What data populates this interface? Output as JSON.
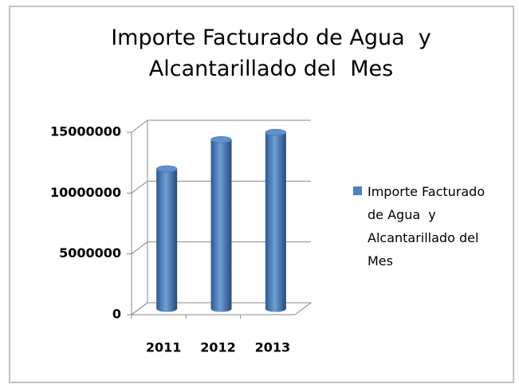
{
  "chart_data": {
    "type": "bar3d",
    "title": [
      "Importe Facturado de Agua  y",
      "Alcantarillado del  Mes"
    ],
    "categories": [
      "2011",
      "2012",
      "2013"
    ],
    "series": [
      {
        "name": "Importe Facturado de Agua  y Alcantarillado del Mes",
        "color": "#4f81bd",
        "values": [
          11500000,
          13900000,
          14500000
        ]
      }
    ],
    "ylim": [
      0,
      15000000
    ],
    "yticks": [
      0,
      5000000,
      10000000,
      15000000
    ],
    "grid": true,
    "legend": "right"
  }
}
